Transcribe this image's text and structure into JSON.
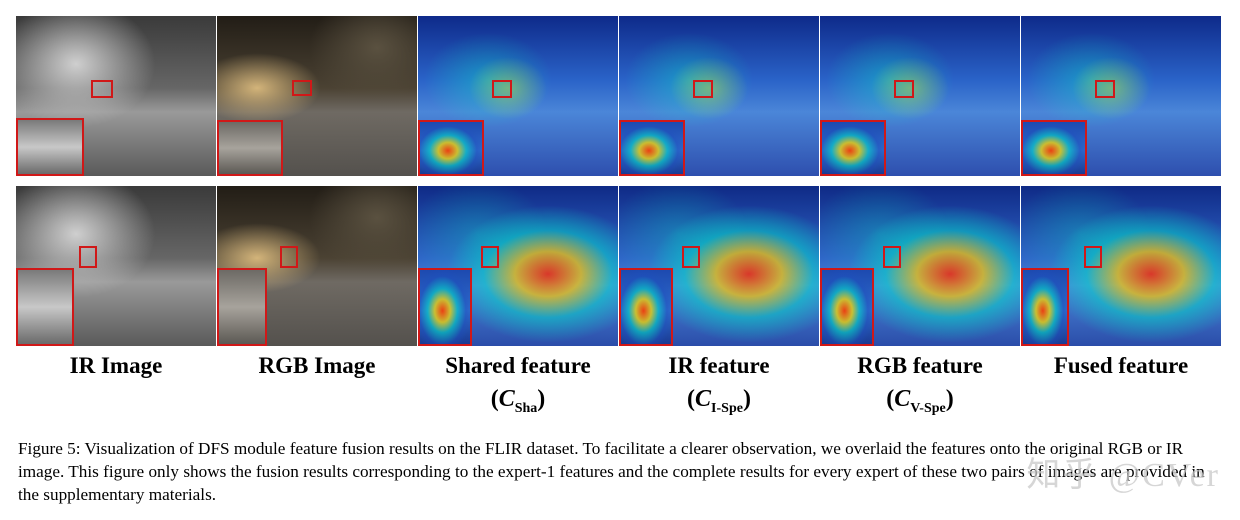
{
  "labels": [
    {
      "text": "IR Image"
    },
    {
      "text": "RGB Image"
    },
    {
      "text": "Shared feature",
      "math": {
        "symbol": "C",
        "sub": "Sha"
      }
    },
    {
      "text": "IR feature",
      "math": {
        "symbol": "C",
        "sub": "I-Spe"
      }
    },
    {
      "text": "RGB feature",
      "math": {
        "symbol": "C",
        "sub": "V-Spe"
      }
    },
    {
      "text": "Fused feature"
    }
  ],
  "caption": "Figure 5: Visualization of DFS module feature fusion results on the FLIR dataset. To facilitate a clearer observation, we overlaid the features onto the original RGB or IR image. This figure only shows the fusion results corresponding to the expert-1 features and the complete results for every expert of these two pairs of images are provided in the supplementary materials.",
  "watermark": "知乎 @CVer"
}
